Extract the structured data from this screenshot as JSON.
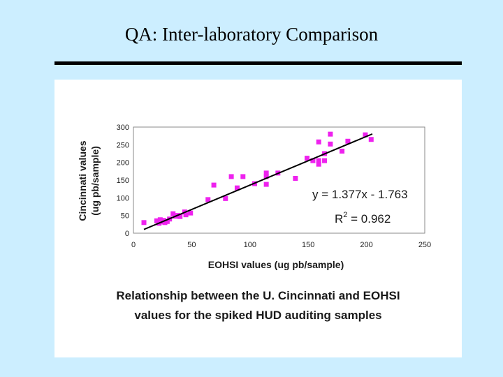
{
  "slide": {
    "title": "QA: Inter-laboratory Comparison",
    "caption_line1": "Relationship between the U. Cincinnati and EOHSI",
    "caption_line2": "values for the spiked HUD auditing samples"
  },
  "chart_data": {
    "type": "scatter",
    "xlabel": "EOHSI values (ug pb/sample)",
    "ylabel_line1": "Cincinnati values",
    "ylabel_line2": "(ug  pb/sample)",
    "xlim": [
      0,
      250
    ],
    "ylim": [
      0,
      300
    ],
    "xticks": [
      0,
      50,
      100,
      150,
      200,
      250
    ],
    "yticks": [
      0,
      50,
      100,
      150,
      200,
      250,
      300
    ],
    "grid": false,
    "marker_color": "#ee22ee",
    "points": [
      [
        9,
        30
      ],
      [
        20,
        35
      ],
      [
        22,
        28
      ],
      [
        23,
        38
      ],
      [
        24,
        32
      ],
      [
        26,
        36
      ],
      [
        27,
        30
      ],
      [
        29,
        33
      ],
      [
        31,
        40
      ],
      [
        34,
        55
      ],
      [
        36,
        48
      ],
      [
        38,
        50
      ],
      [
        40,
        47
      ],
      [
        44,
        60
      ],
      [
        45,
        52
      ],
      [
        49,
        57
      ],
      [
        64,
        95
      ],
      [
        69,
        136
      ],
      [
        79,
        98
      ],
      [
        84,
        160
      ],
      [
        89,
        128
      ],
      [
        94,
        160
      ],
      [
        104,
        140
      ],
      [
        114,
        160
      ],
      [
        114,
        170
      ],
      [
        114,
        138
      ],
      [
        124,
        170
      ],
      [
        139,
        155
      ],
      [
        149,
        212
      ],
      [
        154,
        205
      ],
      [
        159,
        258
      ],
      [
        159,
        195
      ],
      [
        159,
        205
      ],
      [
        164,
        205
      ],
      [
        164,
        225
      ],
      [
        169,
        280
      ],
      [
        169,
        252
      ],
      [
        179,
        232
      ],
      [
        184,
        260
      ],
      [
        199,
        278
      ],
      [
        204,
        265
      ]
    ],
    "regression": {
      "slope": 1.377,
      "intercept": -1.763,
      "x_range": [
        9,
        205
      ],
      "line_color": "#000000"
    },
    "annotation": {
      "equation": "y = 1.377x - 1.763",
      "r2_prefix": "R",
      "r2_sup": "2",
      "r2_suffix": " = 0.962"
    }
  }
}
